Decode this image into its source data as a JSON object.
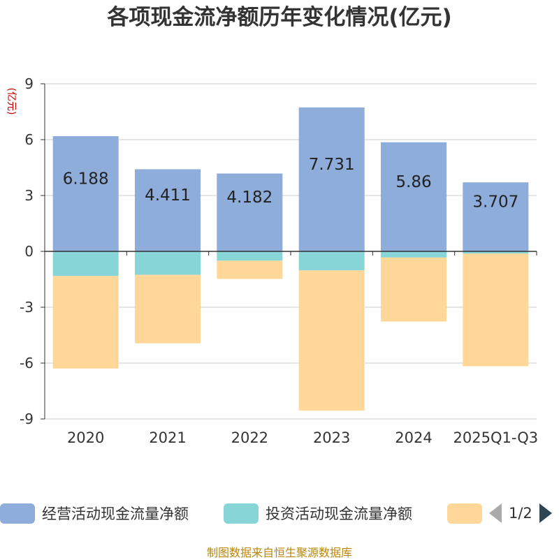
{
  "chart_data": {
    "type": "bar",
    "stacked": true,
    "title": "各项现金流净额历年变化情况(亿元)",
    "ylabel": "(亿元)",
    "categories": [
      "2020",
      "2021",
      "2022",
      "2023",
      "2024",
      "2025Q1-Q3"
    ],
    "ylim": [
      -9,
      9
    ],
    "yticks": [
      9,
      6,
      3,
      0,
      -3,
      -6,
      -9
    ],
    "grid": true,
    "series": [
      {
        "name": "经营活动现金流量净额",
        "color": "#8eadda",
        "values": [
          6.188,
          4.411,
          4.182,
          7.731,
          5.86,
          3.707
        ],
        "show_labels": true
      },
      {
        "name": "投资活动现金流量净额",
        "color": "#87d5d6",
        "values": [
          -1.32,
          -1.26,
          -0.5,
          -1.02,
          -0.33,
          -0.12
        ],
        "show_labels": false
      },
      {
        "name": "",
        "color": "#fed799",
        "values": [
          -4.97,
          -3.68,
          -0.98,
          -7.53,
          -3.44,
          -6.05
        ],
        "show_labels": false
      }
    ]
  },
  "legend": {
    "items": [
      {
        "label": "经营活动现金流量净额",
        "color": "#8eadda"
      },
      {
        "label": "投资活动现金流量净额",
        "color": "#87d5d6"
      },
      {
        "label": "",
        "color": "#fed799"
      }
    ],
    "page": "1/2"
  },
  "source": "制图数据来自恒生聚源数据库"
}
